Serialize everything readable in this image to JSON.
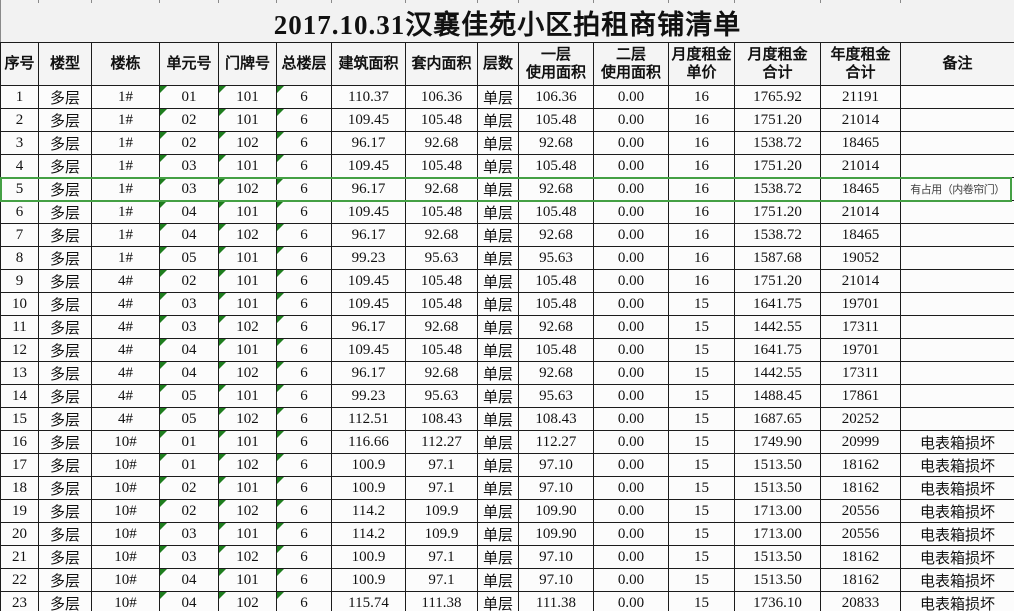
{
  "title": "2017.10.31汉襄佳苑小区拍租商铺清单",
  "table": {
    "columns": [
      {
        "key": "serial",
        "label": "序号"
      },
      {
        "key": "building-type",
        "label": "楼型"
      },
      {
        "key": "building",
        "label": "楼栋"
      },
      {
        "key": "unit-no",
        "label": "单元号"
      },
      {
        "key": "door-no",
        "label": "门牌号"
      },
      {
        "key": "total-floors",
        "label": "总楼层"
      },
      {
        "key": "building-area",
        "label": "建筑面积"
      },
      {
        "key": "interior-area",
        "label": "套内面积"
      },
      {
        "key": "floors",
        "label": "层数"
      },
      {
        "key": "floor1-area",
        "label": "一层\n使用面积"
      },
      {
        "key": "floor2-area",
        "label": "二层\n使用面积"
      },
      {
        "key": "unit-price",
        "label": "月度租金\n单价"
      },
      {
        "key": "monthly-rent",
        "label": "月度租金\n合计"
      },
      {
        "key": "annual-rent",
        "label": "年度租金\n合计"
      },
      {
        "key": "remark",
        "label": "备注"
      }
    ],
    "rows": [
      [
        "1",
        "多层",
        "1#",
        "01",
        "101",
        "6",
        "110.37",
        "106.36",
        "单层",
        "106.36",
        "0.00",
        "16",
        "1765.92",
        "21191",
        ""
      ],
      [
        "2",
        "多层",
        "1#",
        "02",
        "101",
        "6",
        "109.45",
        "105.48",
        "单层",
        "105.48",
        "0.00",
        "16",
        "1751.20",
        "21014",
        ""
      ],
      [
        "3",
        "多层",
        "1#",
        "02",
        "102",
        "6",
        "96.17",
        "92.68",
        "单层",
        "92.68",
        "0.00",
        "16",
        "1538.72",
        "18465",
        ""
      ],
      [
        "4",
        "多层",
        "1#",
        "03",
        "101",
        "6",
        "109.45",
        "105.48",
        "单层",
        "105.48",
        "0.00",
        "16",
        "1751.20",
        "21014",
        ""
      ],
      [
        "5",
        "多层",
        "1#",
        "03",
        "102",
        "6",
        "96.17",
        "92.68",
        "单层",
        "92.68",
        "0.00",
        "16",
        "1538.72",
        "18465",
        "有占用（内卷帘门）"
      ],
      [
        "6",
        "多层",
        "1#",
        "04",
        "101",
        "6",
        "109.45",
        "105.48",
        "单层",
        "105.48",
        "0.00",
        "16",
        "1751.20",
        "21014",
        ""
      ],
      [
        "7",
        "多层",
        "1#",
        "04",
        "102",
        "6",
        "96.17",
        "92.68",
        "单层",
        "92.68",
        "0.00",
        "16",
        "1538.72",
        "18465",
        ""
      ],
      [
        "8",
        "多层",
        "1#",
        "05",
        "101",
        "6",
        "99.23",
        "95.63",
        "单层",
        "95.63",
        "0.00",
        "16",
        "1587.68",
        "19052",
        ""
      ],
      [
        "9",
        "多层",
        "4#",
        "02",
        "101",
        "6",
        "109.45",
        "105.48",
        "单层",
        "105.48",
        "0.00",
        "16",
        "1751.20",
        "21014",
        ""
      ],
      [
        "10",
        "多层",
        "4#",
        "03",
        "101",
        "6",
        "109.45",
        "105.48",
        "单层",
        "105.48",
        "0.00",
        "15",
        "1641.75",
        "19701",
        ""
      ],
      [
        "11",
        "多层",
        "4#",
        "03",
        "102",
        "6",
        "96.17",
        "92.68",
        "单层",
        "92.68",
        "0.00",
        "15",
        "1442.55",
        "17311",
        ""
      ],
      [
        "12",
        "多层",
        "4#",
        "04",
        "101",
        "6",
        "109.45",
        "105.48",
        "单层",
        "105.48",
        "0.00",
        "15",
        "1641.75",
        "19701",
        ""
      ],
      [
        "13",
        "多层",
        "4#",
        "04",
        "102",
        "6",
        "96.17",
        "92.68",
        "单层",
        "92.68",
        "0.00",
        "15",
        "1442.55",
        "17311",
        ""
      ],
      [
        "14",
        "多层",
        "4#",
        "05",
        "101",
        "6",
        "99.23",
        "95.63",
        "单层",
        "95.63",
        "0.00",
        "15",
        "1488.45",
        "17861",
        ""
      ],
      [
        "15",
        "多层",
        "4#",
        "05",
        "102",
        "6",
        "112.51",
        "108.43",
        "单层",
        "108.43",
        "0.00",
        "15",
        "1687.65",
        "20252",
        ""
      ],
      [
        "16",
        "多层",
        "10#",
        "01",
        "101",
        "6",
        "116.66",
        "112.27",
        "单层",
        "112.27",
        "0.00",
        "15",
        "1749.90",
        "20999",
        "电表箱损坏"
      ],
      [
        "17",
        "多层",
        "10#",
        "01",
        "102",
        "6",
        "100.9",
        "97.1",
        "单层",
        "97.10",
        "0.00",
        "15",
        "1513.50",
        "18162",
        "电表箱损坏"
      ],
      [
        "18",
        "多层",
        "10#",
        "02",
        "101",
        "6",
        "100.9",
        "97.1",
        "单层",
        "97.10",
        "0.00",
        "15",
        "1513.50",
        "18162",
        "电表箱损坏"
      ],
      [
        "19",
        "多层",
        "10#",
        "02",
        "102",
        "6",
        "114.2",
        "109.9",
        "单层",
        "109.90",
        "0.00",
        "15",
        "1713.00",
        "20556",
        "电表箱损坏"
      ],
      [
        "20",
        "多层",
        "10#",
        "03",
        "101",
        "6",
        "114.2",
        "109.9",
        "单层",
        "109.90",
        "0.00",
        "15",
        "1713.00",
        "20556",
        "电表箱损坏"
      ],
      [
        "21",
        "多层",
        "10#",
        "03",
        "102",
        "6",
        "100.9",
        "97.1",
        "单层",
        "97.10",
        "0.00",
        "15",
        "1513.50",
        "18162",
        "电表箱损坏"
      ],
      [
        "22",
        "多层",
        "10#",
        "04",
        "101",
        "6",
        "100.9",
        "97.1",
        "单层",
        "97.10",
        "0.00",
        "15",
        "1513.50",
        "18162",
        "电表箱损坏"
      ],
      [
        "23",
        "多层",
        "10#",
        "04",
        "102",
        "6",
        "115.74",
        "111.38",
        "单层",
        "111.38",
        "0.00",
        "15",
        "1736.10",
        "20833",
        "电表箱损坏"
      ]
    ],
    "error_flag_columns": [
      3,
      4,
      5
    ]
  },
  "selection": {
    "row_index": 4
  },
  "colors": {
    "flag_green": "#1e7d1e",
    "selection_green": "#44a044",
    "grid_border": "#1c1c1c"
  }
}
